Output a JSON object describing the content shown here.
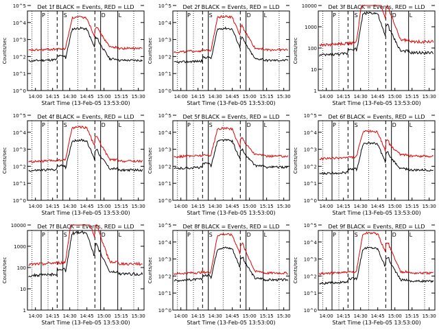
{
  "chart_data": [
    {
      "type": "line",
      "title": "Det 1f BLACK = Events, RED = LLD",
      "scale": "log",
      "ylim": [
        1,
        100000
      ],
      "yticks": [
        {
          "label": "10^0",
          "value": 1
        },
        {
          "label": "10^1",
          "value": 10
        },
        {
          "label": "10^2",
          "value": 100
        },
        {
          "label": "10^3",
          "value": 1000
        },
        {
          "label": "10^4",
          "value": 10000
        },
        {
          "label": "10^5",
          "value": 100000
        }
      ],
      "ylabel": "Counts/sec",
      "xlabel": "Start Time (13-Feb-05 13:53:00)",
      "xticks": [
        "14:00",
        "14:15",
        "14:30",
        "14:45",
        "15:00",
        "15:15",
        "15:30"
      ],
      "series": [
        {
          "name": "Events",
          "color": "#000000",
          "level_low": 60,
          "level_high": 60,
          "peak": 4000
        },
        {
          "name": "LLD",
          "color": "#e00000",
          "level_low": 250,
          "level_high": 300,
          "peak": 18000
        }
      ],
      "markers": {
        "P": "P",
        "S": "S",
        "D": "D",
        "L": "L"
      }
    },
    {
      "type": "line",
      "title": "Det 2f BLACK = Events, RED = LLD",
      "scale": "log",
      "ylim": [
        1,
        100000
      ],
      "yticks": [
        {
          "label": "10^0",
          "value": 1
        },
        {
          "label": "10^1",
          "value": 10
        },
        {
          "label": "10^2",
          "value": 100
        },
        {
          "label": "10^3",
          "value": 1000
        },
        {
          "label": "10^4",
          "value": 10000
        },
        {
          "label": "10^5",
          "value": 100000
        }
      ],
      "ylabel": "Counts/sec",
      "xlabel": "Start Time (13-Feb-05 13:53:00)",
      "xticks": [
        "14:00",
        "14:15",
        "14:30",
        "14:45",
        "15:00",
        "15:15",
        "15:30"
      ],
      "series": [
        {
          "name": "Events",
          "color": "#000000",
          "level_low": 50,
          "level_high": 60,
          "peak": 4000
        },
        {
          "name": "LLD",
          "color": "#e00000",
          "level_low": 200,
          "level_high": 250,
          "peak": 20000
        }
      ],
      "markers": {
        "P": "P",
        "S": "S",
        "D": "D",
        "L": "L"
      }
    },
    {
      "type": "line",
      "title": "Det 3f BLACK = Events, RED = LLD",
      "scale": "log",
      "ylim": [
        1,
        10000
      ],
      "yticks": [
        {
          "label": "1",
          "value": 1
        },
        {
          "label": "10",
          "value": 10
        },
        {
          "label": "100",
          "value": 100
        },
        {
          "label": "1000",
          "value": 1000
        },
        {
          "label": "10000",
          "value": 10000
        }
      ],
      "ylabel": "Counts/sec",
      "xlabel": "Start Time (13-Feb-05 13:53:00)",
      "xticks": [
        "14:00",
        "14:15",
        "14:30",
        "14:45",
        "15:00",
        "15:15",
        "15:30"
      ],
      "series": [
        {
          "name": "Events",
          "color": "#000000",
          "level_low": 50,
          "level_high": 60,
          "peak": 4000
        },
        {
          "name": "LLD",
          "color": "#e00000",
          "level_low": 150,
          "level_high": 200,
          "peak": 30000
        }
      ],
      "markers": {
        "P": "P",
        "S": "S",
        "D": "D",
        "L": "L"
      }
    },
    {
      "type": "line",
      "title": "Det 4f BLACK = Events, RED = LLD",
      "scale": "log",
      "ylim": [
        1,
        100000
      ],
      "yticks": [
        {
          "label": "10^0",
          "value": 1
        },
        {
          "label": "10^1",
          "value": 10
        },
        {
          "label": "10^2",
          "value": 100
        },
        {
          "label": "10^3",
          "value": 1000
        },
        {
          "label": "10^4",
          "value": 10000
        },
        {
          "label": "10^5",
          "value": 100000
        }
      ],
      "ylabel": "Counts/sec",
      "xlabel": "Start Time (13-Feb-05 13:53:00)",
      "xticks": [
        "14:00",
        "14:15",
        "14:30",
        "14:45",
        "15:00",
        "15:15",
        "15:30"
      ],
      "series": [
        {
          "name": "Events",
          "color": "#000000",
          "level_low": 60,
          "level_high": 60,
          "peak": 3000
        },
        {
          "name": "LLD",
          "color": "#e00000",
          "level_low": 200,
          "level_high": 200,
          "peak": 18000
        }
      ],
      "markers": {
        "P": "P",
        "S": "S",
        "D": "D",
        "L": "L"
      }
    },
    {
      "type": "line",
      "title": "Det 5f BLACK = Events, RED = LLD",
      "scale": "log",
      "ylim": [
        1,
        100000
      ],
      "yticks": [
        {
          "label": "10^0",
          "value": 1
        },
        {
          "label": "10^1",
          "value": 10
        },
        {
          "label": "10^2",
          "value": 100
        },
        {
          "label": "10^3",
          "value": 1000
        },
        {
          "label": "10^4",
          "value": 10000
        },
        {
          "label": "10^5",
          "value": 100000
        }
      ],
      "ylabel": "Counts/sec",
      "xlabel": "Start Time (13-Feb-05 13:53:00)",
      "xticks": [
        "14:00",
        "14:15",
        "14:30",
        "14:45",
        "15:00",
        "15:15",
        "15:30"
      ],
      "series": [
        {
          "name": "Events",
          "color": "#000000",
          "level_low": 80,
          "level_high": 90,
          "peak": 3000
        },
        {
          "name": "LLD",
          "color": "#e00000",
          "level_low": 400,
          "level_high": 400,
          "peak": 15000
        }
      ],
      "markers": {
        "P": "P",
        "S": "S",
        "D": "D",
        "L": "L"
      }
    },
    {
      "type": "line",
      "title": "Det 6f BLACK = Events, RED = LLD",
      "scale": "log",
      "ylim": [
        1,
        100000
      ],
      "yticks": [
        {
          "label": "10^0",
          "value": 1
        },
        {
          "label": "10^1",
          "value": 10
        },
        {
          "label": "10^2",
          "value": 100
        },
        {
          "label": "10^3",
          "value": 1000
        },
        {
          "label": "10^4",
          "value": 10000
        },
        {
          "label": "10^5",
          "value": 100000
        }
      ],
      "ylabel": "Counts/sec",
      "xlabel": "Start Time (13-Feb-05 13:53:00)",
      "xticks": [
        "14:00",
        "14:15",
        "14:30",
        "14:45",
        "15:00",
        "15:15",
        "15:30"
      ],
      "series": [
        {
          "name": "Events",
          "color": "#000000",
          "level_low": 40,
          "level_high": 60,
          "peak": 2000
        },
        {
          "name": "LLD",
          "color": "#e00000",
          "level_low": 300,
          "level_high": 400,
          "peak": 10000
        }
      ],
      "markers": {
        "P": "P",
        "S": "S",
        "D": "D",
        "L": "L"
      }
    },
    {
      "type": "line",
      "title": "Det 7f BLACK = Events, RED = LLD",
      "scale": "log",
      "ylim": [
        1,
        10000
      ],
      "yticks": [
        {
          "label": "1",
          "value": 1
        },
        {
          "label": "10",
          "value": 10
        },
        {
          "label": "100",
          "value": 100
        },
        {
          "label": "1000",
          "value": 1000
        },
        {
          "label": "10000",
          "value": 10000
        }
      ],
      "ylabel": "Counts/sec",
      "xlabel": "Start Time (13-Feb-05 13:53:00)",
      "xticks": [
        "14:00",
        "14:15",
        "14:30",
        "14:45",
        "15:00",
        "15:15",
        "15:30"
      ],
      "series": [
        {
          "name": "Events",
          "color": "#000000",
          "level_low": 45,
          "level_high": 50,
          "peak": 4000
        },
        {
          "name": "LLD",
          "color": "#e00000",
          "level_low": 150,
          "level_high": 150,
          "peak": 30000
        }
      ],
      "markers": {
        "P": "P",
        "S": "S",
        "D": "D",
        "L": "L"
      }
    },
    {
      "type": "line",
      "title": "Det 8f BLACK = Events, RED = LLD",
      "scale": "log",
      "ylim": [
        1,
        100000
      ],
      "yticks": [
        {
          "label": "10^0",
          "value": 1
        },
        {
          "label": "10^1",
          "value": 10
        },
        {
          "label": "10^2",
          "value": 100
        },
        {
          "label": "10^3",
          "value": 1000
        },
        {
          "label": "10^4",
          "value": 10000
        },
        {
          "label": "10^5",
          "value": 100000
        }
      ],
      "ylabel": "Counts/sec",
      "xlabel": "Start Time (13-Feb-05 13:53:00)",
      "xticks": [
        "14:00",
        "14:15",
        "14:30",
        "14:45",
        "15:00",
        "15:15",
        "15:30"
      ],
      "series": [
        {
          "name": "Events",
          "color": "#000000",
          "level_low": 60,
          "level_high": 60,
          "peak": 4000
        },
        {
          "name": "LLD",
          "color": "#e00000",
          "level_low": 150,
          "level_high": 150,
          "peak": 25000
        }
      ],
      "markers": {
        "P": "P",
        "S": "S",
        "D": "D",
        "L": "L"
      }
    },
    {
      "type": "line",
      "title": "Det 9f BLACK = Events, RED = LLD",
      "scale": "log",
      "ylim": [
        1,
        100000
      ],
      "yticks": [
        {
          "label": "10^0",
          "value": 1
        },
        {
          "label": "10^1",
          "value": 10
        },
        {
          "label": "10^2",
          "value": 100
        },
        {
          "label": "10^3",
          "value": 1000
        },
        {
          "label": "10^4",
          "value": 10000
        },
        {
          "label": "10^5",
          "value": 100000
        }
      ],
      "ylabel": "Counts/sec",
      "xlabel": "Start Time (13-Feb-05 13:53:00)",
      "xticks": [
        "14:00",
        "14:15",
        "14:30",
        "14:45",
        "15:00",
        "15:15",
        "15:30"
      ],
      "series": [
        {
          "name": "Events",
          "color": "#000000",
          "level_low": 40,
          "level_high": 50,
          "peak": 4000
        },
        {
          "name": "LLD",
          "color": "#e00000",
          "level_low": 150,
          "level_high": 150,
          "peak": 30000
        }
      ],
      "markers": {
        "P": "P",
        "S": "S",
        "D": "D",
        "L": "L"
      }
    }
  ]
}
